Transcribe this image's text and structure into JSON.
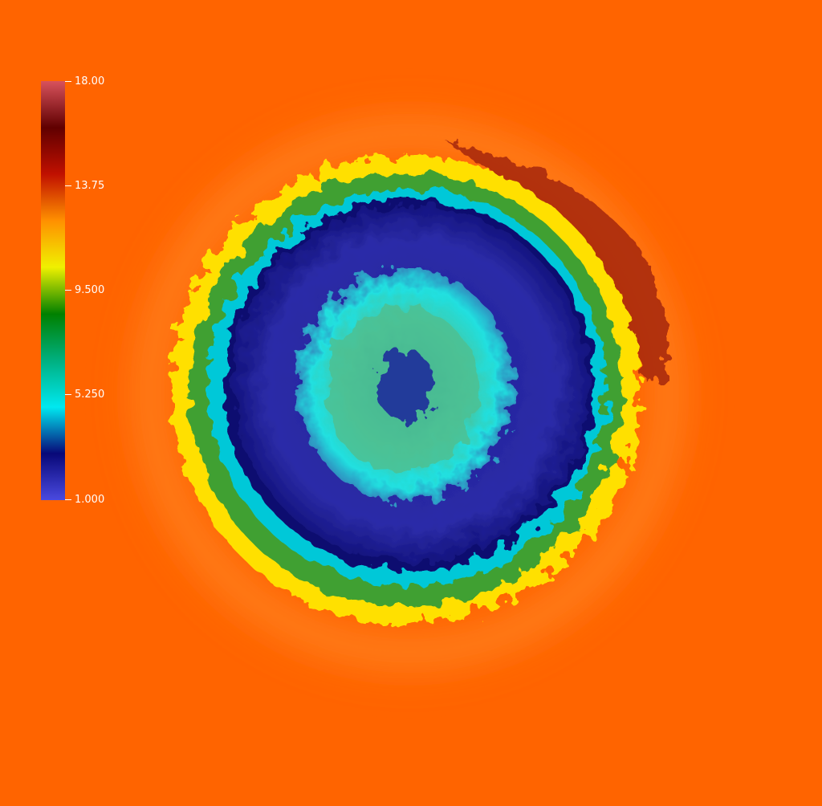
{
  "scalar_bar": {
    "labels": [
      "18.00",
      "13.75",
      "9.500",
      "5.250",
      "1.000"
    ],
    "range": [
      1.0,
      18.0
    ],
    "colormap": [
      "#4a4ae0",
      "#080878",
      "#00e8f0",
      "#00b080",
      "#008000",
      "#f0f000",
      "#ff9000",
      "#c01000",
      "#600000",
      "#d8525c"
    ]
  },
  "colors": {
    "background": "#ff6400",
    "shell_outer": "#ffe000",
    "shell_green": "#30a040",
    "shell_cyan": "#00d8e8",
    "cavity": "#2a2aa0",
    "core": "#40d0b0"
  },
  "icons": [
    "simulation-field-image"
  ]
}
